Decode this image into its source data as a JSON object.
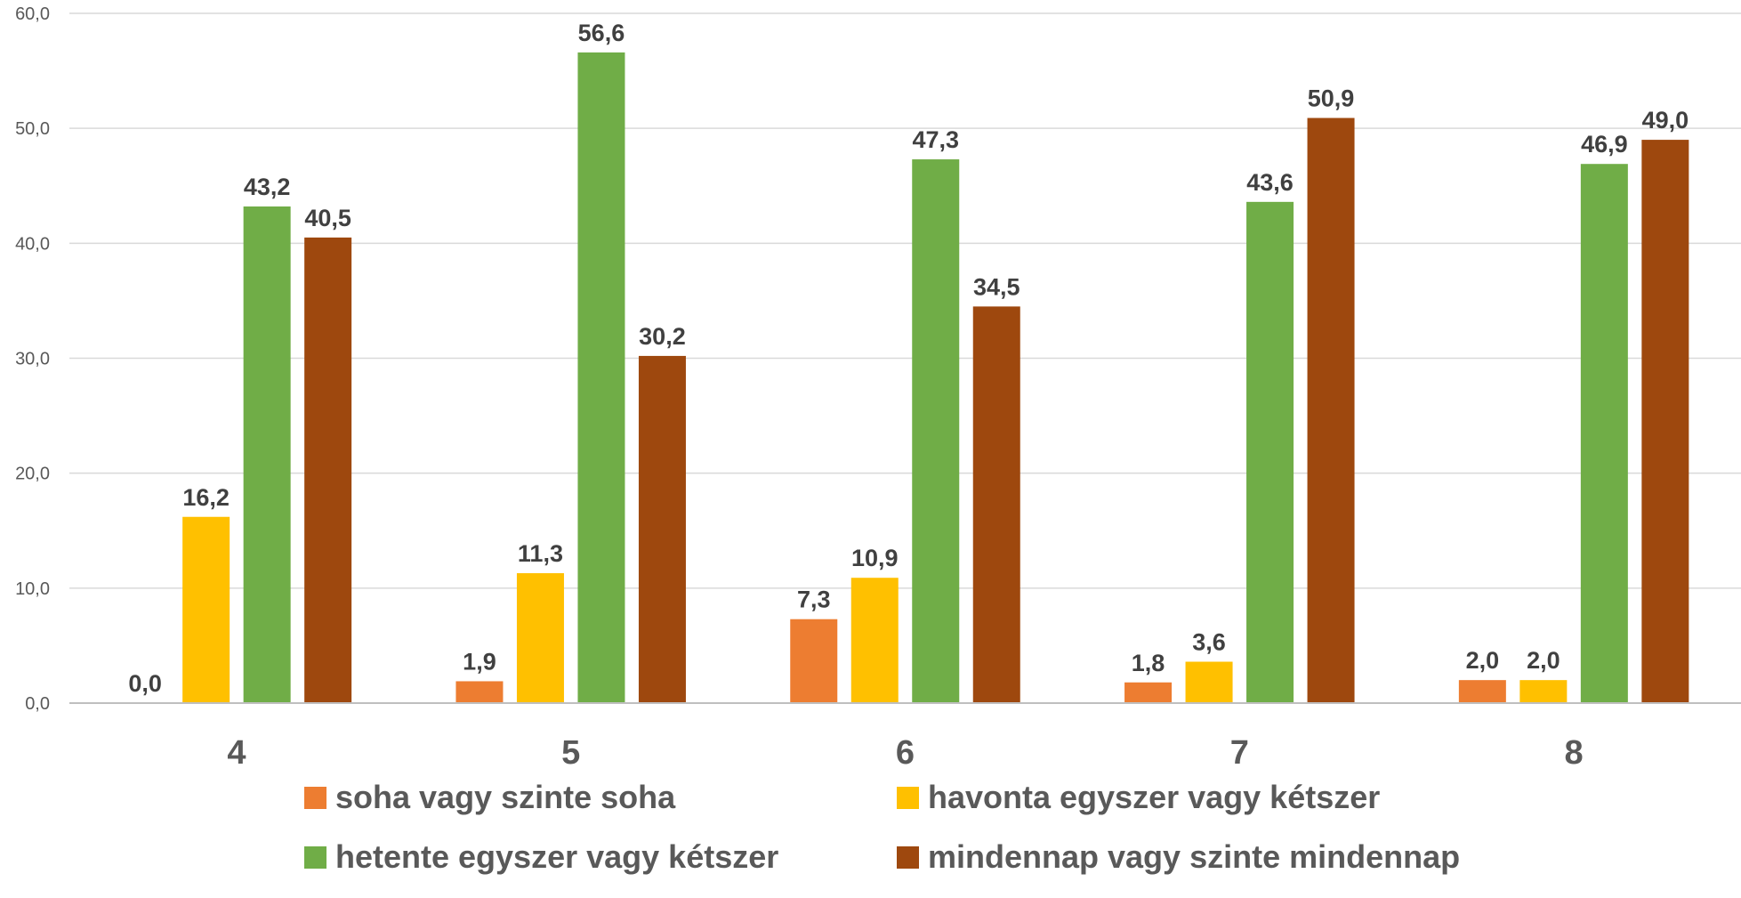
{
  "chart_data": {
    "type": "bar",
    "categories": [
      "4",
      "5",
      "6",
      "7",
      "8"
    ],
    "series": [
      {
        "name": "soha vagy szinte soha",
        "color": "#ED7D31",
        "values": [
          0.0,
          1.9,
          7.3,
          1.8,
          2.0
        ],
        "labels": [
          "0,0",
          "1,9",
          "7,3",
          "1,8",
          "2,0"
        ]
      },
      {
        "name": "havonta egyszer vagy kétszer",
        "color": "#FFC000",
        "values": [
          16.2,
          11.3,
          10.9,
          3.6,
          2.0
        ],
        "labels": [
          "16,2",
          "11,3",
          "10,9",
          "3,6",
          "2,0"
        ]
      },
      {
        "name": "hetente egyszer vagy kétszer",
        "color": "#70AD47",
        "values": [
          43.2,
          56.6,
          47.3,
          43.6,
          46.9
        ],
        "labels": [
          "43,2",
          "56,6",
          "47,3",
          "43,6",
          "46,9"
        ]
      },
      {
        "name": "mindennap vagy szinte mindennap",
        "color": "#9E480E",
        "values": [
          40.5,
          30.2,
          34.5,
          50.9,
          49.0
        ],
        "labels": [
          "40,5",
          "30,2",
          "34,5",
          "50,9",
          "49,0"
        ]
      }
    ],
    "yticks": [
      0,
      10,
      20,
      30,
      40,
      50,
      60
    ],
    "ytick_labels": [
      "0,0",
      "10,0",
      "20,0",
      "30,0",
      "40,0",
      "50,0",
      "60,0"
    ],
    "ylim": [
      0,
      60
    ],
    "grid": true,
    "legend_position": "bottom",
    "title": "",
    "xlabel": "",
    "ylabel": ""
  }
}
